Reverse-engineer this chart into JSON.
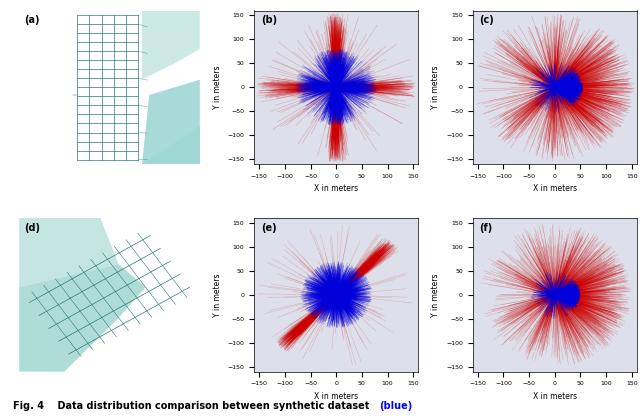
{
  "fig_width": 6.4,
  "fig_height": 4.2,
  "dpi": 100,
  "bg_color": "#dde0ea",
  "map_bg_color": "#8ecfc9",
  "map_road_color": "#2a7a75",
  "axis_lim": [
    -160,
    160
  ],
  "xticks": [
    -150,
    -100,
    -50,
    0,
    50,
    100,
    150
  ],
  "yticks": [
    -150,
    -100,
    -50,
    0,
    50,
    100,
    150
  ],
  "xlabel": "X in meters",
  "ylabel": "Y in meters",
  "subplot_labels": [
    "(a)",
    "(b)",
    "(c)",
    "(d)",
    "(e)",
    "(f)"
  ],
  "blue_color": "#0000dd",
  "red_color": "#cc0000",
  "caption_black": "Fig. 4    Data distribution comparison between synthetic dataset ",
  "caption_blue": "(blue)"
}
